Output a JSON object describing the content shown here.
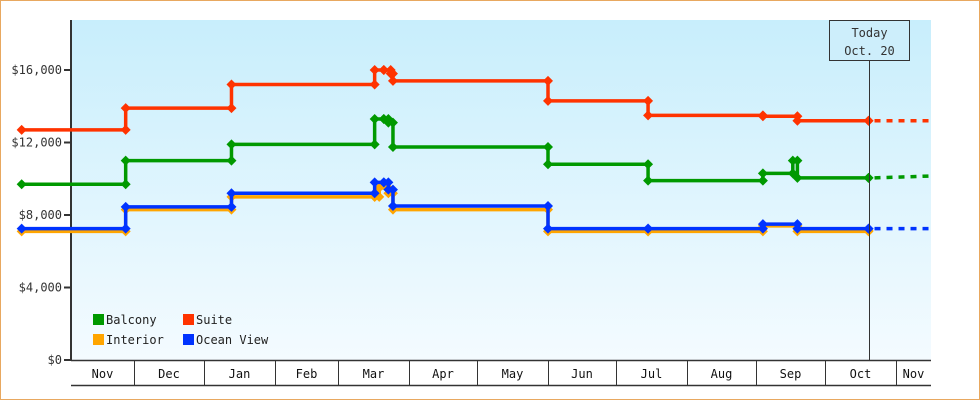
{
  "chart_data": {
    "type": "line",
    "step": true,
    "title": "",
    "xlabel": "",
    "ylabel": "",
    "ylim": [
      0,
      18750
    ],
    "yticks": [
      0,
      4000,
      8000,
      12000,
      16000
    ],
    "ytick_labels": [
      "$0",
      "$4,000",
      "$8,000",
      "$12,000",
      "$16,000"
    ],
    "xlim": [
      "Nov 4",
      "Nov 15"
    ],
    "x_categories": [
      "Nov",
      "Dec",
      "Jan",
      "Feb",
      "Mar",
      "Apr",
      "May",
      "Jun",
      "Jul",
      "Aug",
      "Sep",
      "Oct",
      "Nov"
    ],
    "grid": false,
    "legend_position": "bottom-left",
    "today": {
      "label": "Today",
      "date_label": "Oct. 20",
      "date": "Oct 20"
    },
    "series": [
      {
        "name": "Balcony",
        "color": "#009900",
        "points": [
          [
            "Nov 4",
            9700
          ],
          [
            "Nov 29",
            11000
          ],
          [
            "Jan 13",
            11900
          ],
          [
            "Mar 17",
            13300
          ],
          [
            "Mar 21",
            13300
          ],
          [
            "Mar 23",
            13100
          ],
          [
            "Mar 25",
            11750
          ],
          [
            "Jun 1",
            10800
          ],
          [
            "Jul 15",
            9900
          ],
          [
            "Sep 4",
            10300
          ],
          [
            "Sep 17",
            11000
          ],
          [
            "Sep 19",
            10050
          ],
          [
            "Oct 20",
            10050
          ]
        ],
        "projection": [
          [
            "Oct 20",
            10050
          ],
          [
            "Nov 15",
            10150
          ]
        ]
      },
      {
        "name": "Suite",
        "color": "#ff3300",
        "points": [
          [
            "Nov 4",
            12700
          ],
          [
            "Nov 29",
            13900
          ],
          [
            "Jan 13",
            15200
          ],
          [
            "Mar 17",
            16000
          ],
          [
            "Mar 21",
            16000
          ],
          [
            "Mar 24",
            15800
          ],
          [
            "Mar 25",
            15400
          ],
          [
            "Jun 1",
            14300
          ],
          [
            "Jul 15",
            13500
          ],
          [
            "Sep 4",
            13450
          ],
          [
            "Sep 19",
            13200
          ],
          [
            "Oct 20",
            13200
          ]
        ],
        "projection": [
          [
            "Oct 20",
            13200
          ],
          [
            "Nov 15",
            13200
          ]
        ]
      },
      {
        "name": "Interior",
        "color": "#ffa500",
        "points": [
          [
            "Nov 4",
            7100
          ],
          [
            "Nov 29",
            8300
          ],
          [
            "Jan 13",
            9000
          ],
          [
            "Mar 17",
            9000
          ],
          [
            "Mar 19",
            9500
          ],
          [
            "Mar 23",
            9200
          ],
          [
            "Mar 25",
            8300
          ],
          [
            "Jun 1",
            7100
          ],
          [
            "Jul 15",
            7100
          ],
          [
            "Sep 4",
            7400
          ],
          [
            "Sep 19",
            7100
          ],
          [
            "Oct 20",
            7150
          ]
        ],
        "projection": []
      },
      {
        "name": "Ocean View",
        "color": "#0033ff",
        "points": [
          [
            "Nov 4",
            7250
          ],
          [
            "Nov 29",
            8450
          ],
          [
            "Jan 13",
            9200
          ],
          [
            "Mar 17",
            9800
          ],
          [
            "Mar 21",
            9800
          ],
          [
            "Mar 23",
            9400
          ],
          [
            "Mar 25",
            8500
          ],
          [
            "Jun 1",
            7250
          ],
          [
            "Jul 15",
            7250
          ],
          [
            "Sep 4",
            7500
          ],
          [
            "Sep 19",
            7250
          ],
          [
            "Oct 20",
            7250
          ]
        ],
        "projection": [
          [
            "Oct 20",
            7250
          ],
          [
            "Nov 15",
            7250
          ]
        ]
      }
    ]
  }
}
